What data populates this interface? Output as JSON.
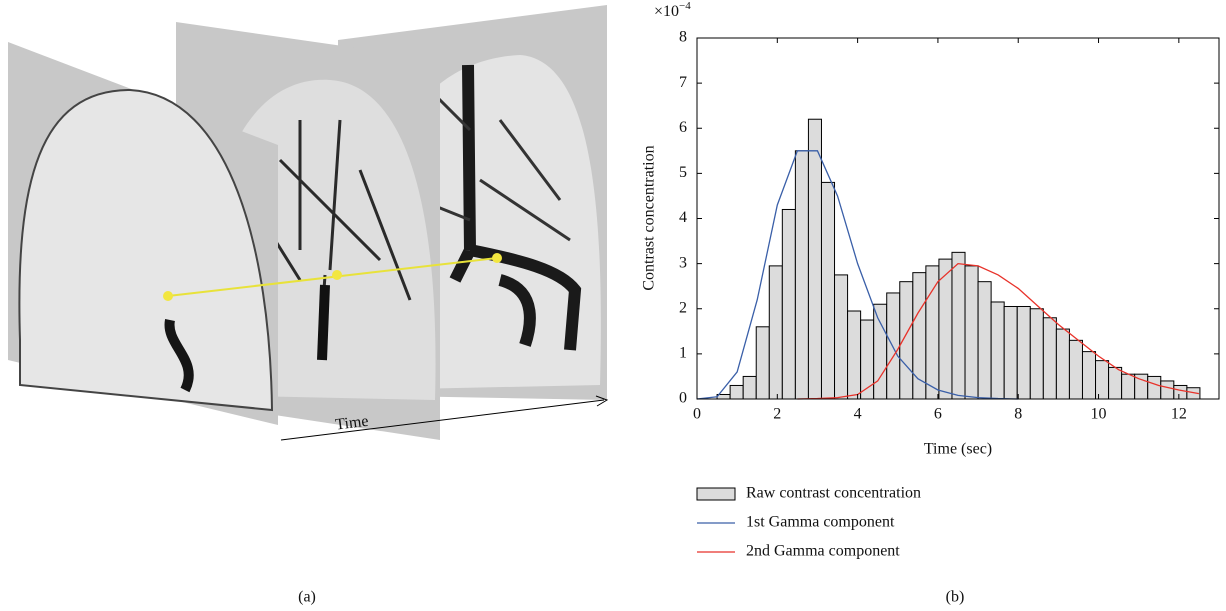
{
  "panel_a": {
    "time_label": "Time",
    "caption": "(a)"
  },
  "chart_data": {
    "type": "histogram",
    "caption": "(b)",
    "x_label": "Time (sec)",
    "y_label": "Contrast concentration",
    "y_multiplier": {
      "base": "×10",
      "exponent": "−4"
    },
    "xlim": [
      0,
      13
    ],
    "xticks": [
      0,
      2,
      4,
      6,
      8,
      10,
      12
    ],
    "ylim": [
      0,
      8
    ],
    "yticks": [
      0,
      1,
      2,
      3,
      4,
      5,
      6,
      7,
      8
    ],
    "bins": [
      0.5,
      0.825,
      1.15,
      1.475,
      1.8,
      2.125,
      2.45,
      2.775,
      3.1,
      3.425,
      3.75,
      4.075,
      4.4,
      4.725,
      5.05,
      5.375,
      5.7,
      6.025,
      6.35,
      6.675,
      7.0,
      7.325,
      7.65,
      7.975,
      8.3,
      8.625,
      8.95,
      9.275,
      9.6,
      9.925,
      10.25,
      10.575,
      10.9,
      11.225,
      11.55,
      11.875,
      12.2,
      12.525
    ],
    "series": [
      {
        "name": "Raw contrast concentration",
        "color": "#dcdcdc",
        "values": [
          0.1,
          0.3,
          0.5,
          1.6,
          2.95,
          4.2,
          5.5,
          6.2,
          4.8,
          2.75,
          1.95,
          1.75,
          2.1,
          2.35,
          2.6,
          2.8,
          2.95,
          3.1,
          3.25,
          2.95,
          2.6,
          2.15,
          2.05,
          2.05,
          2.0,
          1.8,
          1.55,
          1.3,
          1.05,
          0.85,
          0.7,
          0.55,
          0.55,
          0.5,
          0.4,
          0.3,
          0.25
        ]
      }
    ],
    "lines": [
      {
        "name": "1st Gamma component",
        "color": "#3a5fa8",
        "x": [
          0,
          0.5,
          1,
          1.5,
          2,
          2.5,
          3,
          3.5,
          4,
          4.5,
          5,
          5.5,
          6,
          6.5,
          7,
          7.5,
          8
        ],
        "values": [
          0,
          0.05,
          0.6,
          2.2,
          4.3,
          5.5,
          5.5,
          4.5,
          3.0,
          1.8,
          0.95,
          0.45,
          0.2,
          0.08,
          0.03,
          0.01,
          0
        ]
      },
      {
        "name": "2nd Gamma component",
        "color": "#e8322a",
        "x": [
          2.5,
          3,
          3.5,
          4,
          4.5,
          5,
          5.5,
          6,
          6.5,
          7,
          7.5,
          8,
          8.5,
          9,
          9.5,
          10,
          10.5,
          11,
          11.5,
          12,
          12.5
        ],
        "values": [
          0,
          0.01,
          0.03,
          0.1,
          0.4,
          1.1,
          1.9,
          2.6,
          3.0,
          2.95,
          2.75,
          2.45,
          2.05,
          1.65,
          1.3,
          0.95,
          0.65,
          0.45,
          0.3,
          0.2,
          0.12
        ]
      }
    ]
  }
}
